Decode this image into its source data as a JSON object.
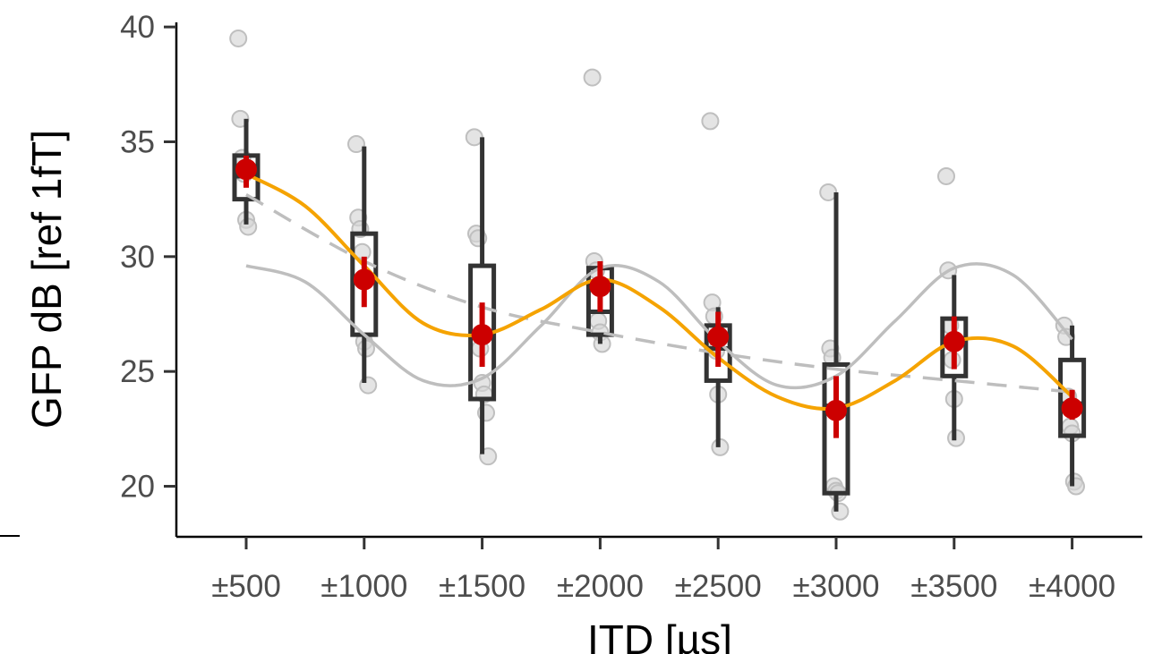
{
  "chart_data": {
    "type": "box",
    "title": "",
    "xlabel": "ITD [µs]",
    "ylabel": "GFP dB [ref 1fT]",
    "categories": [
      "±500",
      "±1000",
      "±1500",
      "±2000",
      "±2500",
      "±3000",
      "±3500",
      "±4000"
    ],
    "ylim": [
      17.8,
      40.2
    ],
    "yticks": [
      20,
      25,
      30,
      35,
      40
    ],
    "grid": false,
    "legend": "none",
    "boxes": [
      {
        "category": "±500",
        "whisker_low": 31.4,
        "q1": 32.5,
        "median": 33.5,
        "q3": 34.4,
        "whisker_high": 36.0
      },
      {
        "category": "±1000",
        "whisker_low": 24.5,
        "q1": 26.6,
        "median": 29.0,
        "q3": 31.0,
        "whisker_high": 34.8
      },
      {
        "category": "±1500",
        "whisker_low": 21.4,
        "q1": 23.8,
        "median": 26.5,
        "q3": 29.6,
        "whisker_high": 35.2
      },
      {
        "category": "±2000",
        "whisker_low": 26.2,
        "q1": 26.6,
        "median": 27.6,
        "q3": 29.5,
        "whisker_high": 29.7
      },
      {
        "category": "±2500",
        "whisker_low": 21.7,
        "q1": 24.6,
        "median": 26.0,
        "q3": 27.0,
        "whisker_high": 27.8
      },
      {
        "category": "±3000",
        "whisker_low": 18.9,
        "q1": 19.7,
        "median": 23.5,
        "q3": 25.3,
        "whisker_high": 32.8
      },
      {
        "category": "±3500",
        "whisker_low": 22.0,
        "q1": 24.8,
        "median": 26.3,
        "q3": 27.3,
        "whisker_high": 29.2
      },
      {
        "category": "±4000",
        "whisker_low": 20.0,
        "q1": 22.2,
        "median": 23.6,
        "q3": 25.5,
        "whisker_high": 27.0
      }
    ],
    "individual_points": [
      [
        39.5,
        36.0,
        34.3,
        33.6,
        31.6,
        31.3
      ],
      [
        34.9,
        31.7,
        31.2,
        30.2,
        26.3,
        26.0,
        24.4
      ],
      [
        35.2,
        31.0,
        30.8,
        26.0,
        24.5,
        24.0,
        23.2,
        21.3
      ],
      [
        37.8,
        29.8,
        29.4,
        27.2,
        26.7,
        26.2
      ],
      [
        35.9,
        28.0,
        27.4,
        25.9,
        24.0,
        21.7
      ],
      [
        32.8,
        26.0,
        25.6,
        20.0,
        19.8,
        19.7,
        18.9
      ],
      [
        33.5,
        29.4,
        27.0,
        25.5,
        23.8,
        22.1
      ],
      [
        27.0,
        26.5,
        23.9,
        22.6,
        22.3,
        20.2,
        20.0
      ]
    ],
    "mean_points": {
      "color": "#cc0000",
      "means": [
        33.8,
        29.0,
        26.6,
        28.7,
        26.5,
        23.3,
        26.3,
        23.4
      ],
      "err_low": [
        33.0,
        27.8,
        25.2,
        27.6,
        25.2,
        22.1,
        25.1,
        22.9
      ],
      "err_high": [
        34.4,
        30.0,
        28.0,
        29.8,
        27.6,
        24.8,
        27.4,
        24.2
      ]
    },
    "series": [
      {
        "style": "orange-solid",
        "color": "#f5a300",
        "x": [
          0,
          0.5,
          1,
          1.5,
          2,
          2.5,
          3,
          3.5,
          4,
          4.5,
          5,
          5.5,
          6,
          6.5,
          7
        ],
        "values": [
          33.6,
          32.2,
          29.6,
          27.1,
          26.6,
          27.7,
          29.0,
          27.8,
          25.6,
          23.9,
          23.4,
          24.6,
          26.3,
          26.1,
          23.9
        ]
      },
      {
        "style": "gray-solid",
        "color": "#bebebe",
        "x": [
          0,
          0.5,
          1,
          1.5,
          2,
          2.5,
          3,
          3.5,
          4,
          4.5,
          5,
          5.5,
          6,
          6.5,
          7
        ],
        "values": [
          29.6,
          28.9,
          26.6,
          24.6,
          24.7,
          27.0,
          29.5,
          28.9,
          26.3,
          24.4,
          24.8,
          27.2,
          29.5,
          29.2,
          26.4
        ]
      },
      {
        "style": "gray-dashed",
        "color": "#bebebe",
        "x": [
          0,
          1,
          2,
          3,
          4,
          5,
          6,
          7
        ],
        "values": [
          32.7,
          29.8,
          27.8,
          26.7,
          25.8,
          25.1,
          24.6,
          24.1
        ]
      }
    ]
  }
}
